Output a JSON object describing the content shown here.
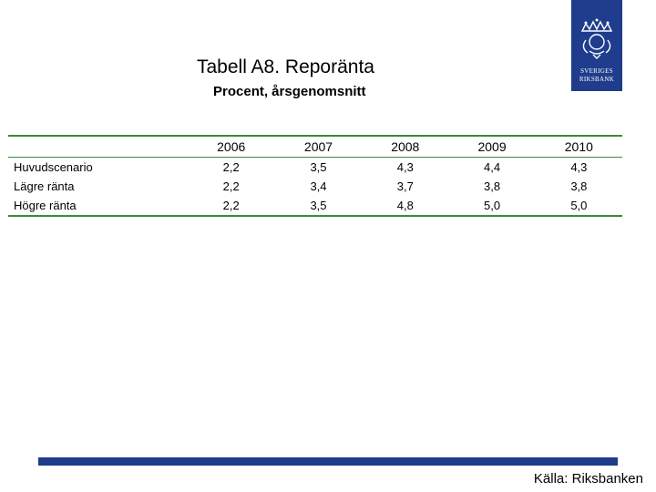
{
  "title": "Tabell A8. Reporänta",
  "subtitle": "Procent, årsgenomsnitt",
  "logo": {
    "line1": "SVERIGES",
    "line2": "RIKSBANK",
    "color": "#1f3d8c"
  },
  "table": {
    "columns": [
      "2006",
      "2007",
      "2008",
      "2009",
      "2010"
    ],
    "rows": [
      {
        "label": "Huvudscenario",
        "values": [
          "2,2",
          "3,5",
          "4,3",
          "4,4",
          "4,3"
        ]
      },
      {
        "label": "Lägre ränta",
        "values": [
          "2,2",
          "3,4",
          "3,7",
          "3,8",
          "3,8"
        ]
      },
      {
        "label": "Högre ränta",
        "values": [
          "2,2",
          "3,5",
          "4,8",
          "5,0",
          "5,0"
        ]
      }
    ]
  },
  "colors": {
    "rule": "#3a8a3a",
    "bar": "#1f3d8c"
  },
  "source": "Källa: Riksbanken"
}
